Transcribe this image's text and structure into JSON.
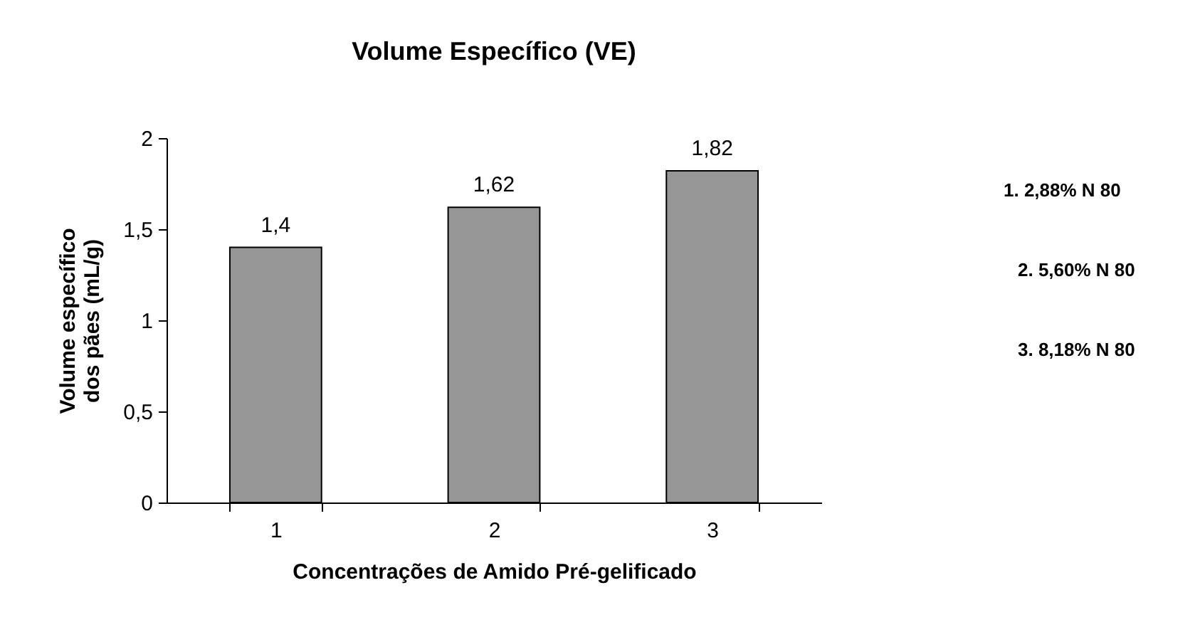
{
  "chart_data": {
    "type": "bar",
    "title": "Volume Específico (VE)",
    "xlabel": "Concentrações de Amido Pré-gelificado",
    "ylabel": "Volume específico dos pães (mL/g)",
    "categories": [
      "1",
      "2",
      "3"
    ],
    "values": [
      1.4,
      1.62,
      1.82
    ],
    "color": "#969696",
    "ylim": [
      0,
      2
    ],
    "yticks": [
      0,
      {
        "value": 0.5,
        "label": "0,5"
      },
      1,
      {
        "value": 1.5,
        "label": "1,5"
      },
      2
    ],
    "data_labels": true,
    "value_labels": [
      "1,4",
      "1,62",
      "1,82"
    ],
    "grid": false,
    "annotations": [
      "1. 2,88% N 80",
      "2. 5,60% N 80",
      "3. 8,18% N 80"
    ]
  }
}
